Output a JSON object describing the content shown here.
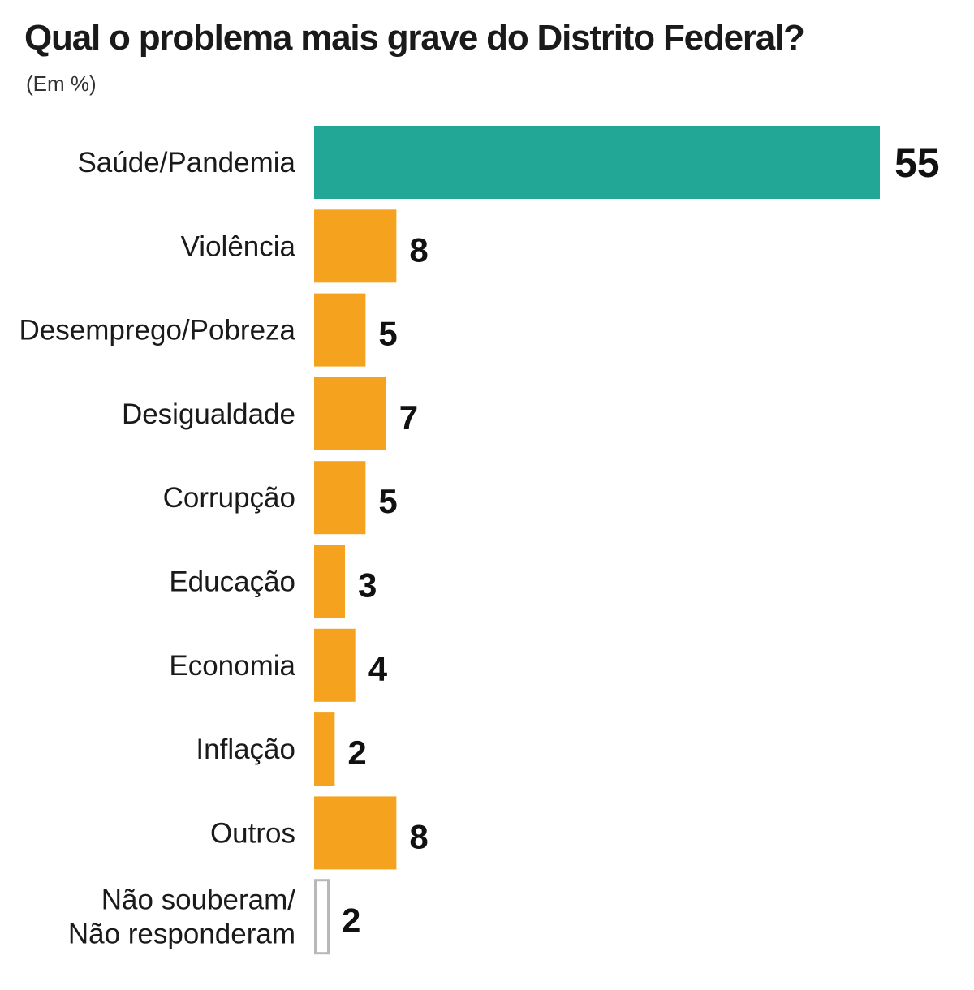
{
  "chart_data": {
    "type": "bar",
    "orientation": "horizontal",
    "title": "Qual o problema mais grave do Distrito Federal?",
    "subtitle": "(Em %)",
    "categories": [
      "Saúde/Pandemia",
      "Violência",
      "Desemprego/Pobreza",
      "Desigualdade",
      "Corrupção",
      "Educação",
      "Economia",
      "Inflação",
      "Outros",
      "Não souberam/ Não responderam"
    ],
    "category_lines": [
      [
        "Saúde/Pandemia"
      ],
      [
        "Violência"
      ],
      [
        "Desemprego/Pobreza"
      ],
      [
        "Desigualdade"
      ],
      [
        "Corrupção"
      ],
      [
        "Educação"
      ],
      [
        "Economia"
      ],
      [
        "Inflação"
      ],
      [
        "Outros"
      ],
      [
        "Não souberam/",
        "Não responderam"
      ]
    ],
    "values": [
      55,
      8,
      5,
      7,
      5,
      3,
      4,
      2,
      8,
      2
    ],
    "value_labels": [
      "55",
      "8",
      "5",
      "7",
      "5",
      "3",
      "4",
      "2",
      "8",
      "2"
    ],
    "bar_styles": [
      "highlight",
      "normal",
      "normal",
      "normal",
      "normal",
      "normal",
      "normal",
      "normal",
      "normal",
      "outline"
    ],
    "xlim": [
      0,
      55
    ],
    "grid": false,
    "legend": "none"
  },
  "colors": {
    "highlight": "#22a796",
    "normal": "#f5a21e",
    "outline_fill": "#ffffff",
    "outline_stroke": "#b8b8b8"
  }
}
